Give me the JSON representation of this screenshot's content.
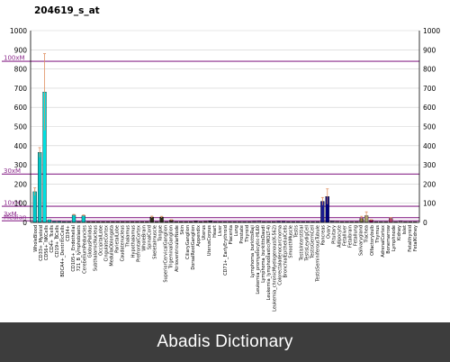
{
  "chart_data": {
    "type": "bar",
    "title": "204619_s_at",
    "ylim": [
      0,
      1000
    ],
    "y_ticks": [
      0,
      100,
      200,
      300,
      400,
      500,
      600,
      700,
      800,
      900,
      1000
    ],
    "reference_lines": [
      {
        "label": "100xM",
        "value": 840,
        "color": "#8b2a8b"
      },
      {
        "label": "30xM",
        "value": 252,
        "color": "#8b2a8b"
      },
      {
        "label": "10xM",
        "value": 84,
        "color": "#8b2a8b"
      },
      {
        "label": "3xM",
        "value": 25,
        "color": "#8b2a8b"
      },
      {
        "label": "Median",
        "value": 8.4,
        "color": "#8b2a8b"
      }
    ],
    "categories": [
      "WholeBlood",
      "CD33+_Myeloid",
      "CD14+_Monocytes",
      "CD56+_NKCells",
      "CD4+_Tcells",
      "CD8+_Tcells",
      "CD19+_BCells",
      "BDCA4+_DentriticCells",
      "CD34+",
      "CD105+_Endothelial",
      "721_B_lymphoblasts",
      "CerebellumPeduncles",
      "Cerebellum",
      "GlobusPallidus",
      "Caudatenucleus",
      "SubthalamicNucleus",
      "Pons",
      "OccipitalLobe",
      "CingulateCortex",
      "MedullaOblongata",
      "ParietalLobe",
      "TemporalLobe",
      "Amygdala",
      "Thalamus",
      "Hypothalamus",
      "PrefrontalCortex",
      "Prostate",
      "WholeBrain",
      "SpinalCord",
      "Skeletalmuscle",
      "Tongue",
      "SuperiorCervicalGanglion",
      "TrigeminalGanglion",
      "Skin",
      "AtrioventricularNode",
      "CiliaryGanglion",
      "DorsalRootGanglion",
      "Uterus",
      "Appendix",
      "UterusCorpus",
      "Heart",
      "Liver",
      "CD71+_EarlyErythroid",
      "Placenta",
      "Lung",
      "Thyroid",
      "Pancreas",
      "Lymphoma_burkittsRaji",
      "Leukemia_promyelocytic-HL60",
      "Lymphoma_burkittsDaudi",
      "Leukemia_lymphoblastic(MOLT-4)",
      "Leukemia_chronicMyelogenous(K-562)",
      "Colorectaladenocarcinoma",
      "BronchialEpithelialCells",
      "SmoothMuscle",
      "Tonsil",
      "Testis",
      "TestisLeydigCell",
      "TestisInterstitial",
      "TestisGermCell",
      "TestisSeminiferousTubule",
      "Ovary",
      "Pituitary",
      "Adipocyte",
      "AdrenalGland",
      "Fetalbrain",
      "Fetalliver",
      "Fetallung",
      "Salivarygland",
      "Trachea",
      "Olfactorybulb",
      "Thymus",
      "AdrenalCortex",
      "Bonemarrow",
      "Kidney",
      "Lymphnode",
      "Islet",
      "Fetalthyroid",
      "FetalKidney"
    ],
    "x_tick_labels": [
      "WholeBlood",
      "CD33+_Myeloid",
      "CD56+_NKCells",
      "CD4+_Tcells",
      "CD19+_BCells",
      "BDCA4+_DentriticCells",
      "CD34+",
      "CD105+_Endothelial",
      "721_B_lymphoblasts",
      "CerebellumPeduncles",
      "GlobusPallidus",
      "SubthalamicNucleus",
      "OccipitalLobe",
      "CingulateCortex",
      "MedullaOblongata",
      "ParietalLobe",
      "Caudatenucleus",
      "Thalamus",
      "Hypothalamus",
      "PrefrontalCortex",
      "WholeBrain",
      "SpinalCord",
      "Skeletalmuscle",
      "Tongue",
      "SuperiorCervicalGanglion",
      "TrigeminalGanglion",
      "AtrioventricularNode",
      "Skin",
      "CiliaryGanglion",
      "DorsalRootGanglion",
      "Appendix",
      "Uterus",
      "UterusCorpus",
      "Heart",
      "Liver",
      "CD71+_EarlyErythroid",
      "Placenta",
      "Lung",
      "Prostate",
      "Thyroid",
      "Lymphoma_burkittsRaji",
      "Leukemia_promyelocytic-HL60",
      "Lymphoma_burkittsDaudi",
      "Leukemia_lymphoblastic(MOLT-4)",
      "Leukemia_chronicMyelogenous(K-562)",
      "Colorectaladenocarcinoma",
      "BronchialEpithelialCells",
      "SmoothMuscle",
      "Testis",
      "TestisInterstitial",
      "TestisLeydigCell",
      "TestisGermCell",
      "TestisSeminiferousTubule",
      "Pancreas",
      "Ovary",
      "Pituitary",
      "Adipocyte",
      "Fetalliver",
      "Fetalbrain",
      "Fetallung",
      "Salivarygland",
      "Trachea",
      "Olfactorybulb",
      "Thymus",
      "AdrenalCortex",
      "Bonemarrow",
      "Lymphnode",
      "Kidney",
      "Islet",
      "Fetalthyroid",
      "FetalKidney"
    ],
    "values": [
      160,
      365,
      680,
      14,
      5,
      5,
      4,
      4,
      38,
      4,
      35,
      4,
      4,
      4,
      4,
      4,
      4,
      4,
      4,
      4,
      4,
      4,
      4,
      4,
      28,
      4,
      28,
      4,
      12,
      4,
      4,
      4,
      4,
      6,
      4,
      5,
      8,
      4,
      4,
      4,
      4,
      4,
      4,
      4,
      4,
      5,
      6,
      4,
      4,
      4,
      5,
      5,
      4,
      4,
      4,
      4,
      4,
      4,
      4,
      110,
      135,
      8,
      5,
      4,
      4,
      4,
      4,
      20,
      35,
      12,
      4,
      4,
      4,
      20,
      4,
      6,
      4,
      4,
      4
    ],
    "errors": [
      20,
      25,
      200,
      0,
      0,
      0,
      0,
      0,
      4,
      0,
      4,
      0,
      0,
      0,
      0,
      0,
      0,
      0,
      0,
      0,
      0,
      0,
      0,
      0,
      5,
      0,
      4,
      0,
      2,
      0,
      0,
      0,
      0,
      0,
      0,
      0,
      0,
      0,
      0,
      0,
      0,
      0,
      0,
      0,
      0,
      0,
      0,
      0,
      0,
      0,
      0,
      0,
      0,
      0,
      0,
      0,
      0,
      0,
      0,
      20,
      40,
      0,
      0,
      0,
      0,
      0,
      0,
      12,
      20,
      2,
      0,
      0,
      0,
      5,
      0,
      0,
      0,
      0,
      0
    ],
    "colors": [
      "#00c8c8",
      "#00c8c8",
      "#00e0e0",
      "#00c8c8",
      "#00c8c8",
      "#00c8c8",
      "#00c8c8",
      "#00c8c8",
      "#00c8c8",
      "#00c8c8",
      "#00c8c8",
      "#5a4a3a",
      "#5a4a3a",
      "#5a4a3a",
      "#5a4a3a",
      "#5a4a3a",
      "#5a4a3a",
      "#5a4a3a",
      "#5a4a3a",
      "#5a4a3a",
      "#5a4a3a",
      "#5a4a3a",
      "#5a4a3a",
      "#5a4a3a",
      "#2a2a1a",
      "#5a4a3a",
      "#2a2a1a",
      "#5a4a3a",
      "#3a2a2a",
      "#5a4a3a",
      "#5a4a3a",
      "#5a4a3a",
      "#5a4a3a",
      "#2a2a2a",
      "#5a4a3a",
      "#5a4a3a",
      "#3a2a4a",
      "#6a3a6a",
      "#8a5a8a",
      "#8a8aa0",
      "#8a8aa0",
      "#8a8aa0",
      "#a0a0c0",
      "#a0a0c0",
      "#a0a0c0",
      "#8080a0",
      "#a0a0c0",
      "#8080c0",
      "#8080c0",
      "#6060a0",
      "#4040a0",
      "#4040a0",
      "#4040a0",
      "#4040a0",
      "#4040a0",
      "#4040a0",
      "#4040a0",
      "#4040a0",
      "#4040a0",
      "#1a1a90",
      "#000080",
      "#6a5a8a",
      "#a090a0",
      "#a090a0",
      "#a090a0",
      "#a090a0",
      "#b08080",
      "#6a6a40",
      "#a0a070",
      "#800050",
      "#a08090",
      "#a08090",
      "#a08090",
      "#b04070",
      "#c0a0b0",
      "#c0a0b0",
      "#c0a0b0",
      "#c0a0b0",
      "#c0a0b0"
    ],
    "grid": true,
    "xlabel": "",
    "ylabel": ""
  },
  "footer": {
    "brand": "Abadis Dictionary"
  }
}
